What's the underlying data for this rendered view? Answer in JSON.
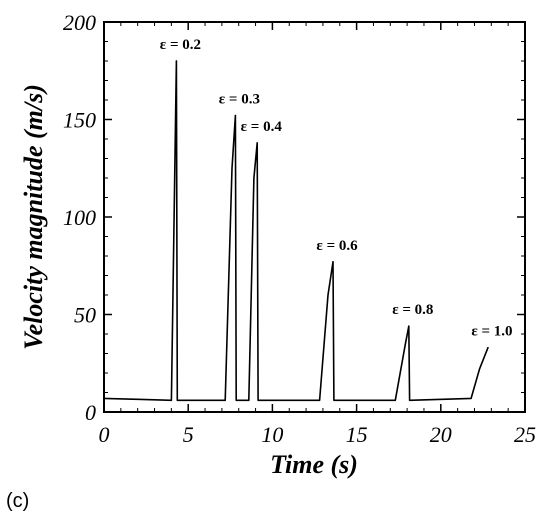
{
  "panel_label": "(c)",
  "chart_data": {
    "type": "line",
    "xlabel": "Time (s)",
    "ylabel": "Velocity magnitude (m/s)",
    "xlim": [
      0,
      25
    ],
    "ylim": [
      0,
      200
    ],
    "x_ticks": [
      0,
      5,
      10,
      15,
      20,
      25
    ],
    "y_ticks": [
      0,
      50,
      100,
      150,
      200
    ],
    "x_tick_labels": [
      "0",
      "5",
      "10",
      "15",
      "20",
      "25"
    ],
    "y_tick_labels": [
      "0",
      "50",
      "100",
      "150",
      "200"
    ],
    "grid": false,
    "line_color": "#000000",
    "baseline": 6,
    "peak_labels": [
      "ε = 0.2",
      "ε = 0.3",
      "ε = 0.4",
      "ε = 0.6",
      "ε = 0.8",
      "ε = 1.0"
    ],
    "points": [
      {
        "x": 0,
        "y": 7
      },
      {
        "x": 2,
        "y": 6.5
      },
      {
        "x": 4.0,
        "y": 6
      },
      {
        "x": 4.3,
        "y": 180
      },
      {
        "x": 4.35,
        "y": 6
      },
      {
        "x": 7.2,
        "y": 6
      },
      {
        "x": 7.6,
        "y": 125
      },
      {
        "x": 7.8,
        "y": 152
      },
      {
        "x": 7.85,
        "y": 6
      },
      {
        "x": 8.6,
        "y": 6
      },
      {
        "x": 8.9,
        "y": 120
      },
      {
        "x": 9.1,
        "y": 138
      },
      {
        "x": 9.15,
        "y": 6
      },
      {
        "x": 12.8,
        "y": 6
      },
      {
        "x": 13.3,
        "y": 60
      },
      {
        "x": 13.6,
        "y": 77
      },
      {
        "x": 13.65,
        "y": 6
      },
      {
        "x": 17.3,
        "y": 6
      },
      {
        "x": 17.9,
        "y": 35
      },
      {
        "x": 18.1,
        "y": 44
      },
      {
        "x": 18.15,
        "y": 6
      },
      {
        "x": 21.8,
        "y": 7
      },
      {
        "x": 22.3,
        "y": 22
      },
      {
        "x": 22.8,
        "y": 33
      }
    ],
    "peaks": [
      {
        "label": "ε = 0.2",
        "x": 4.3,
        "y": 180
      },
      {
        "label": "ε = 0.3",
        "x": 7.8,
        "y": 152
      },
      {
        "label": "ε = 0.4",
        "x": 9.1,
        "y": 138
      },
      {
        "label": "ε = 0.6",
        "x": 13.6,
        "y": 77
      },
      {
        "label": "ε = 0.8",
        "x": 18.1,
        "y": 44
      },
      {
        "label": "ε = 1.0",
        "x": 22.8,
        "y": 33
      }
    ]
  }
}
